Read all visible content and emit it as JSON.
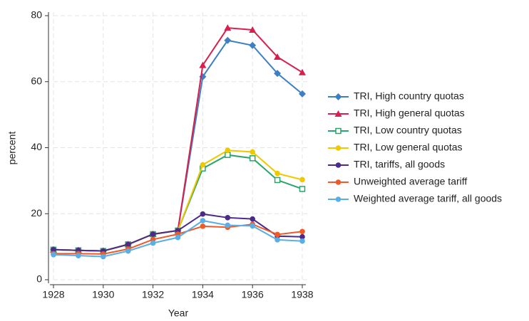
{
  "chart_data": {
    "type": "line",
    "x_label": "Year",
    "y_label": "percent",
    "x": [
      1928,
      1929,
      1930,
      1931,
      1932,
      1933,
      1934,
      1935,
      1936,
      1937,
      1938
    ],
    "xlim": [
      1928,
      1938
    ],
    "xticks": [
      1928,
      1930,
      1932,
      1934,
      1936,
      1938
    ],
    "ylim": [
      0,
      80
    ],
    "yticks": [
      0,
      20,
      40,
      60,
      80
    ],
    "grid": true,
    "legend": "right",
    "series": [
      {
        "name": "TRI, High country quotas",
        "color": "#3e7fc4",
        "marker": "diamond",
        "values": [
          9.1,
          8.9,
          8.7,
          10.7,
          13.8,
          14.9,
          61.5,
          72.5,
          71,
          62.5,
          56.3
        ]
      },
      {
        "name": "TRI, High general quotas",
        "color": "#d6204e",
        "marker": "triangle",
        "values": [
          9.1,
          8.9,
          8.7,
          10.7,
          13.8,
          14.9,
          65,
          76.3,
          75.7,
          67.5,
          62.8
        ]
      },
      {
        "name": "TRI, Low country quotas",
        "color": "#2aa56b",
        "marker": "square-hollow",
        "values": [
          9.1,
          8.9,
          8.7,
          10.7,
          13.8,
          14.9,
          33.7,
          37.8,
          36.8,
          30.2,
          27.5
        ]
      },
      {
        "name": "TRI, Low general quotas",
        "color": "#f0c800",
        "marker": "circle",
        "values": [
          9.1,
          8.9,
          8.7,
          10.7,
          13.8,
          14.9,
          34.8,
          39.2,
          38.7,
          32.2,
          30.3
        ]
      },
      {
        "name": "TRI, tariffs, all goods",
        "color": "#4b2a8a",
        "marker": "circle",
        "values": [
          9.1,
          8.9,
          8.7,
          10.7,
          13.8,
          14.9,
          19.9,
          18.8,
          18.4,
          13.2,
          13.0
        ]
      },
      {
        "name": "Unweighted average tariff",
        "color": "#ee5a2a",
        "marker": "circle",
        "values": [
          7.9,
          7.9,
          7.8,
          9.3,
          12.2,
          13.8,
          16.2,
          15.9,
          16.8,
          13.7,
          14.6
        ]
      },
      {
        "name": "Weighted average tariff, all goods",
        "color": "#5aaee6",
        "marker": "circle",
        "values": [
          7.6,
          7.3,
          7.0,
          8.7,
          11.1,
          12.8,
          17.9,
          16.5,
          16.3,
          12.1,
          11.7
        ]
      }
    ]
  }
}
